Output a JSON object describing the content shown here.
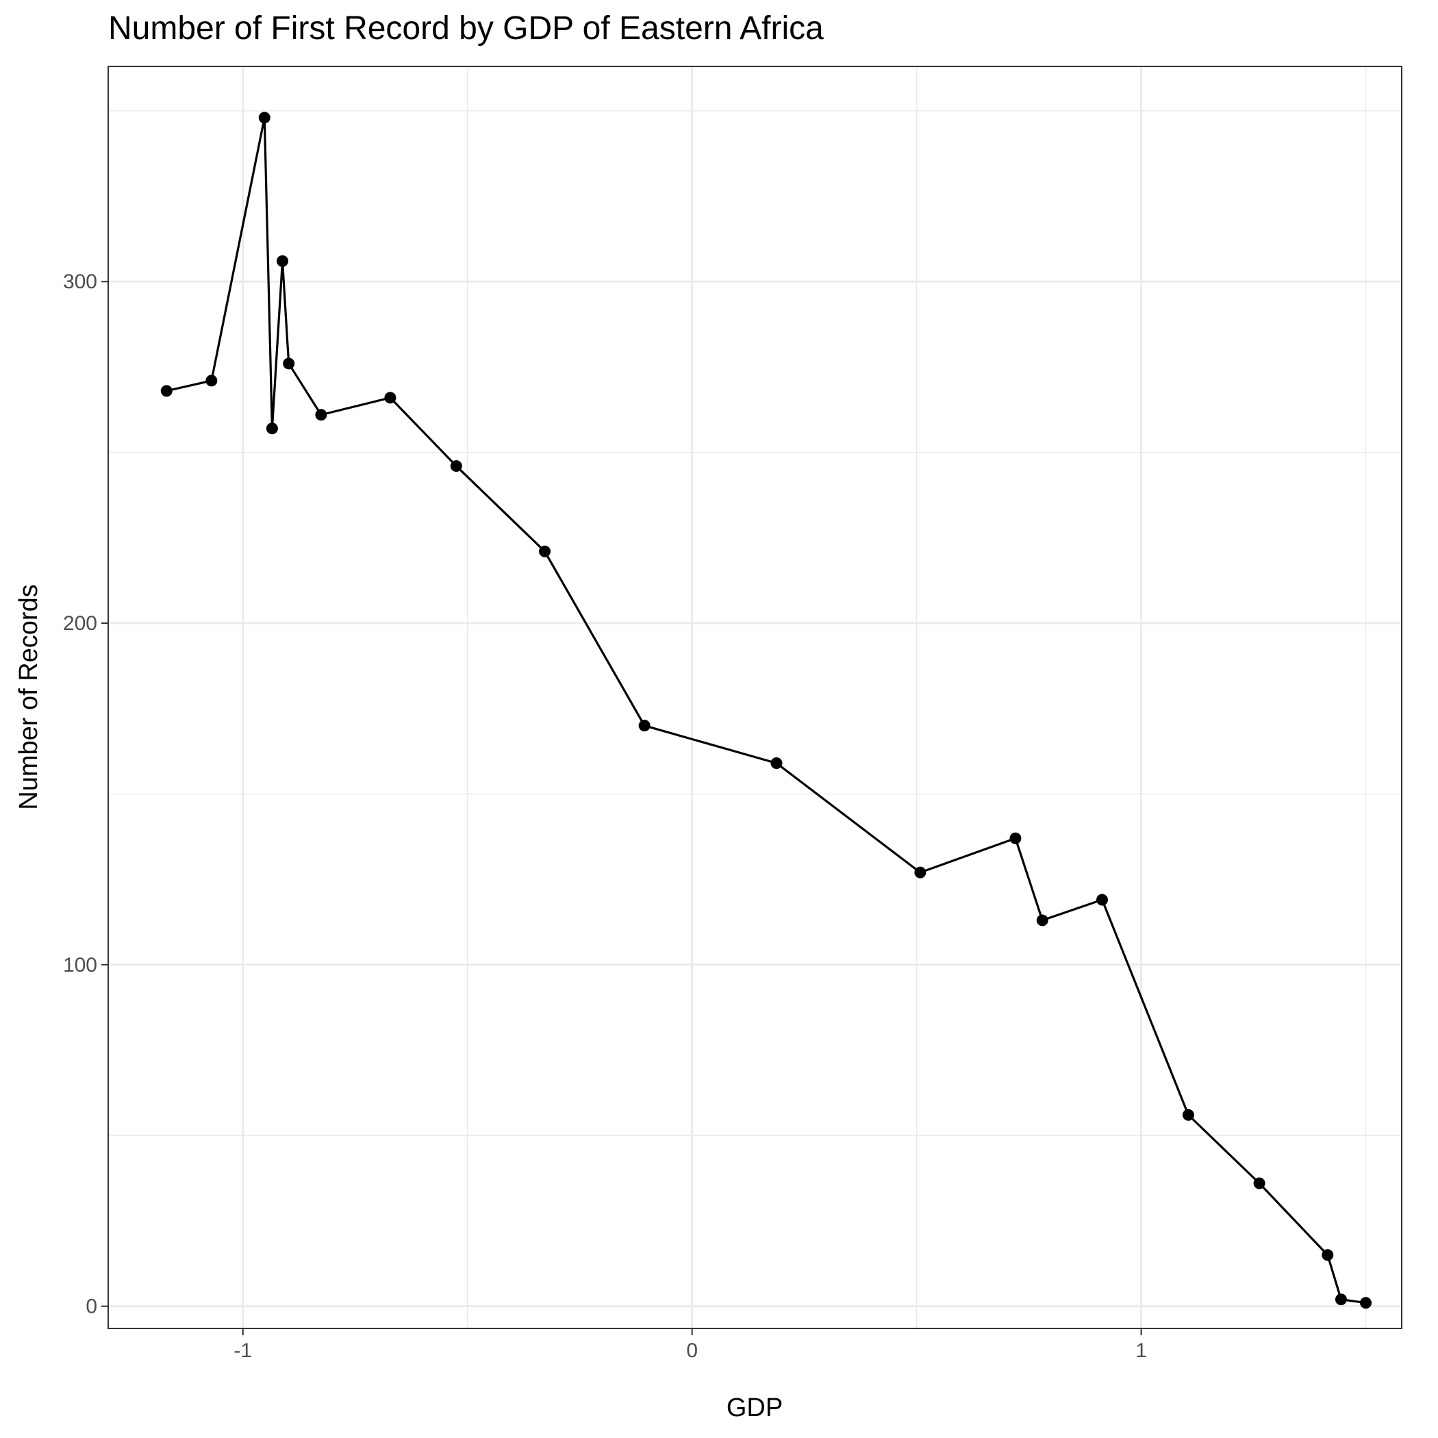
{
  "chart_data": {
    "type": "line",
    "title": "Number of First Record by GDP of Eastern Africa",
    "xlabel": "GDP",
    "ylabel": "Number of Records",
    "xlim": [
      -1.3,
      1.58
    ],
    "ylim": [
      -6.5,
      363
    ],
    "x_major_ticks": [
      -1,
      0,
      1
    ],
    "x_tick_labels": [
      "-1",
      "0",
      "1"
    ],
    "x_minor_ticks": [
      -0.5,
      0.5,
      1.5
    ],
    "y_major_ticks": [
      0,
      100,
      200,
      300
    ],
    "y_tick_labels": [
      "0",
      "100",
      "200",
      "300"
    ],
    "y_minor_ticks": [
      50,
      150,
      250,
      350
    ],
    "grid": true,
    "legend": "none",
    "series": [
      {
        "color": "#000000",
        "markers": true,
        "points": [
          {
            "x": -1.17,
            "y": 268
          },
          {
            "x": -1.07,
            "y": 271
          },
          {
            "x": -0.952,
            "y": 348
          },
          {
            "x": -0.935,
            "y": 257
          },
          {
            "x": -0.912,
            "y": 306
          },
          {
            "x": -0.898,
            "y": 276
          },
          {
            "x": -0.826,
            "y": 261
          },
          {
            "x": -0.672,
            "y": 266
          },
          {
            "x": -0.525,
            "y": 246
          },
          {
            "x": -0.328,
            "y": 221
          },
          {
            "x": -0.106,
            "y": 170
          },
          {
            "x": 0.188,
            "y": 159
          },
          {
            "x": 0.508,
            "y": 127
          },
          {
            "x": 0.72,
            "y": 137
          },
          {
            "x": 0.78,
            "y": 113
          },
          {
            "x": 0.913,
            "y": 119
          },
          {
            "x": 1.105,
            "y": 56
          },
          {
            "x": 1.263,
            "y": 36
          },
          {
            "x": 1.415,
            "y": 15
          },
          {
            "x": 1.445,
            "y": 2
          },
          {
            "x": 1.5,
            "y": 1
          }
        ]
      }
    ]
  }
}
